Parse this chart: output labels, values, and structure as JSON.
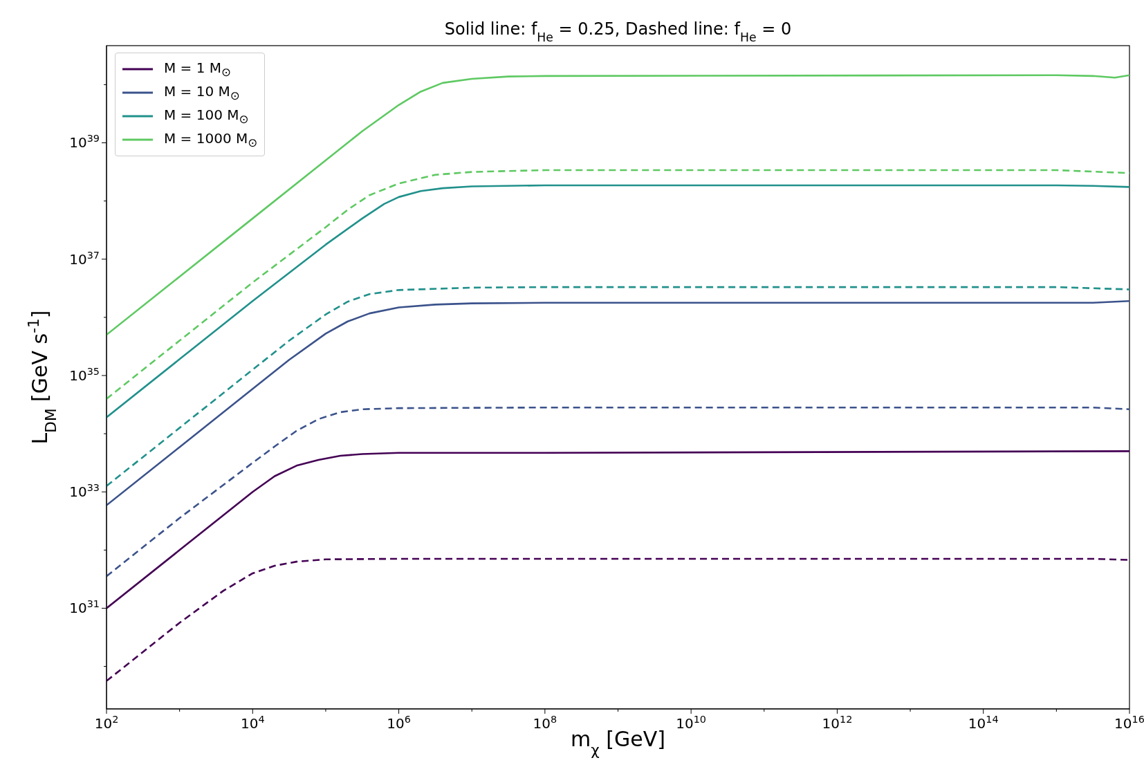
{
  "chart_data": {
    "type": "line",
    "title": "Solid line: f$_{He}$ = 0.25, Dashed line: f$_{He}$ = 0",
    "xlabel": "m$_{χ}$ [GeV]",
    "ylabel": "L$_{DM}$ [GeV s$^{-1}$]",
    "log": "xy",
    "grid": false,
    "legend": "top left",
    "xlim": [
      100.0,
      1e+16
    ],
    "ylim": [
      1.86e+29,
      4.68e+40
    ],
    "xticks": [
      {
        "value": 100.0,
        "label": "10$^{2}$"
      },
      {
        "value": 1000.0,
        "label": null
      },
      {
        "value": 10000.0,
        "label": "10$^{4}$"
      },
      {
        "value": 100000.0,
        "label": null
      },
      {
        "value": 1000000.0,
        "label": "10$^{6}$"
      },
      {
        "value": 10000000.0,
        "label": null
      },
      {
        "value": 100000000.0,
        "label": "10$^{8}$"
      },
      {
        "value": 1000000000.0,
        "label": null
      },
      {
        "value": 10000000000.0,
        "label": "10$^{10}$"
      },
      {
        "value": 100000000000.0,
        "label": null
      },
      {
        "value": 1000000000000.0,
        "label": "10$^{12}$"
      },
      {
        "value": 10000000000000.0,
        "label": null
      },
      {
        "value": 100000000000000.0,
        "label": "10$^{14}$"
      },
      {
        "value": 1000000000000000.0,
        "label": null
      },
      {
        "value": 1e+16,
        "label": "10$^{16}$"
      }
    ],
    "yticks": [
      {
        "value": 1e+30,
        "label": null
      },
      {
        "value": 1e+31,
        "label": "10$^{31}$"
      },
      {
        "value": 1e+32,
        "label": null
      },
      {
        "value": 1e+33,
        "label": "10$^{33}$"
      },
      {
        "value": 1e+34,
        "label": null
      },
      {
        "value": 1e+35,
        "label": "10$^{35}$"
      },
      {
        "value": 1e+36,
        "label": null
      },
      {
        "value": 1e+37,
        "label": "10$^{37}$"
      },
      {
        "value": 1e+38,
        "label": null
      },
      {
        "value": 1e+39,
        "label": "10$^{39}$"
      },
      {
        "value": 1e+40,
        "label": null
      }
    ],
    "series": [
      {
        "name": "M = 1 M$_{⊙}$",
        "color": "#440154",
        "line_style": "solid",
        "x": [
          100.0,
          1000.0,
          10000.0,
          20000.0,
          39800.0,
          79400.0,
          158000.0,
          316000.0,
          1000000.0,
          100000000.0,
          1e+16
        ],
        "values": [
          1e+31,
          1e+32,
          1e+33,
          1.86e+33,
          2.82e+33,
          3.55e+33,
          4.17e+33,
          4.47e+33,
          4.68e+33,
          4.68e+33,
          5.01e+33
        ]
      },
      {
        "name": "M = 10 M$_{⊙}$",
        "color": "#3b528b",
        "line_style": "solid",
        "x": [
          100.0,
          1000.0,
          10000.0,
          31600.0,
          100000.0,
          200000.0,
          398000.0,
          1000000.0,
          3160000.0,
          10000000.0,
          100000000.0,
          3160000000000000.0,
          1e+16
        ],
        "values": [
          5.89e+32,
          5.89e+33,
          5.89e+34,
          1.86e+35,
          5.25e+35,
          8.51e+35,
          1.17e+36,
          1.48e+36,
          1.66e+36,
          1.74e+36,
          1.78e+36,
          1.78e+36,
          1.91e+36
        ]
      },
      {
        "name": "M = 100 M$_{⊙}$",
        "color": "#21918c",
        "line_style": "solid",
        "x": [
          100.0,
          1000.0,
          10000.0,
          100000.0,
          316000.0,
          631000.0,
          1000000.0,
          2000000.0,
          3980000.0,
          10000000.0,
          100000000.0,
          1000000000000000.0,
          3160000000000000.0,
          1e+16
        ],
        "values": [
          1.91e+34,
          1.91e+35,
          1.91e+36,
          1.78e+37,
          5.01e+37,
          8.91e+37,
          1.17e+38,
          1.48e+38,
          1.66e+38,
          1.78e+38,
          1.86e+38,
          1.86e+38,
          1.82e+38,
          1.74e+38
        ]
      },
      {
        "name": "M = 1000 M$_{⊙}$",
        "color": "#5ec962",
        "line_style": "solid",
        "x": [
          100.0,
          1000.0,
          10000.0,
          100000.0,
          316000.0,
          1000000.0,
          2000000.0,
          3980000.0,
          10000000.0,
          31600000.0,
          100000000.0,
          1000000000000000.0,
          3160000000000000.0,
          6310000000000000.0,
          1e+16
        ],
        "values": [
          5.01e+35,
          5.01e+36,
          5.01e+37,
          5.01e+38,
          1.58e+39,
          4.47e+39,
          7.59e+39,
          1.07e+40,
          1.26e+40,
          1.38e+40,
          1.41e+40,
          1.45e+40,
          1.41e+40,
          1.32e+40,
          1.45e+40
        ]
      },
      {
        "color": "#440154",
        "line_style": "dashed",
        "x": [
          100.0,
          1000.0,
          3980.0,
          10000.0,
          20000.0,
          39800.0,
          100000.0,
          1000000.0,
          3160000000000000.0,
          1e+16
        ],
        "values": [
          5.62e+29,
          5.62e+30,
          2e+31,
          3.98e+31,
          5.37e+31,
          6.31e+31,
          6.92e+31,
          7.08e+31,
          7.08e+31,
          6.76e+31
        ]
      },
      {
        "color": "#3b528b",
        "line_style": "dashed",
        "x": [
          100.0,
          1000.0,
          10000.0,
          20000.0,
          39800.0,
          79400.0,
          158000.0,
          316000.0,
          1000000.0,
          100000000.0,
          3160000000000000.0,
          1e+16
        ],
        "values": [
          3.55e+31,
          3.55e+32,
          3.16e+33,
          6.03e+33,
          1.12e+34,
          1.78e+34,
          2.34e+34,
          2.63e+34,
          2.75e+34,
          2.82e+34,
          2.82e+34,
          2.63e+34
        ]
      },
      {
        "color": "#21918c",
        "line_style": "dashed",
        "x": [
          100.0,
          1000.0,
          10000.0,
          31600.0,
          100000.0,
          200000.0,
          398000.0,
          1000000.0,
          10000000.0,
          100000000.0,
          1000000000000000.0,
          1e+16
        ],
        "values": [
          1.26e+33,
          1.26e+34,
          1.26e+35,
          3.98e+35,
          1.12e+36,
          1.86e+36,
          2.51e+36,
          2.95e+36,
          3.24e+36,
          3.31e+36,
          3.31e+36,
          3.02e+36
        ]
      },
      {
        "color": "#5ec962",
        "line_style": "dashed",
        "x": [
          100.0,
          1000.0,
          10000.0,
          100000.0,
          200000.0,
          398000.0,
          1000000.0,
          3160000.0,
          10000000.0,
          100000000.0,
          1000000000000000.0,
          1e+16
        ],
        "values": [
          3.98e+34,
          3.98e+35,
          3.98e+36,
          3.55e+37,
          7.08e+37,
          1.26e+38,
          2e+38,
          2.82e+38,
          3.16e+38,
          3.39e+38,
          3.39e+38,
          3.02e+38
        ]
      }
    ]
  }
}
